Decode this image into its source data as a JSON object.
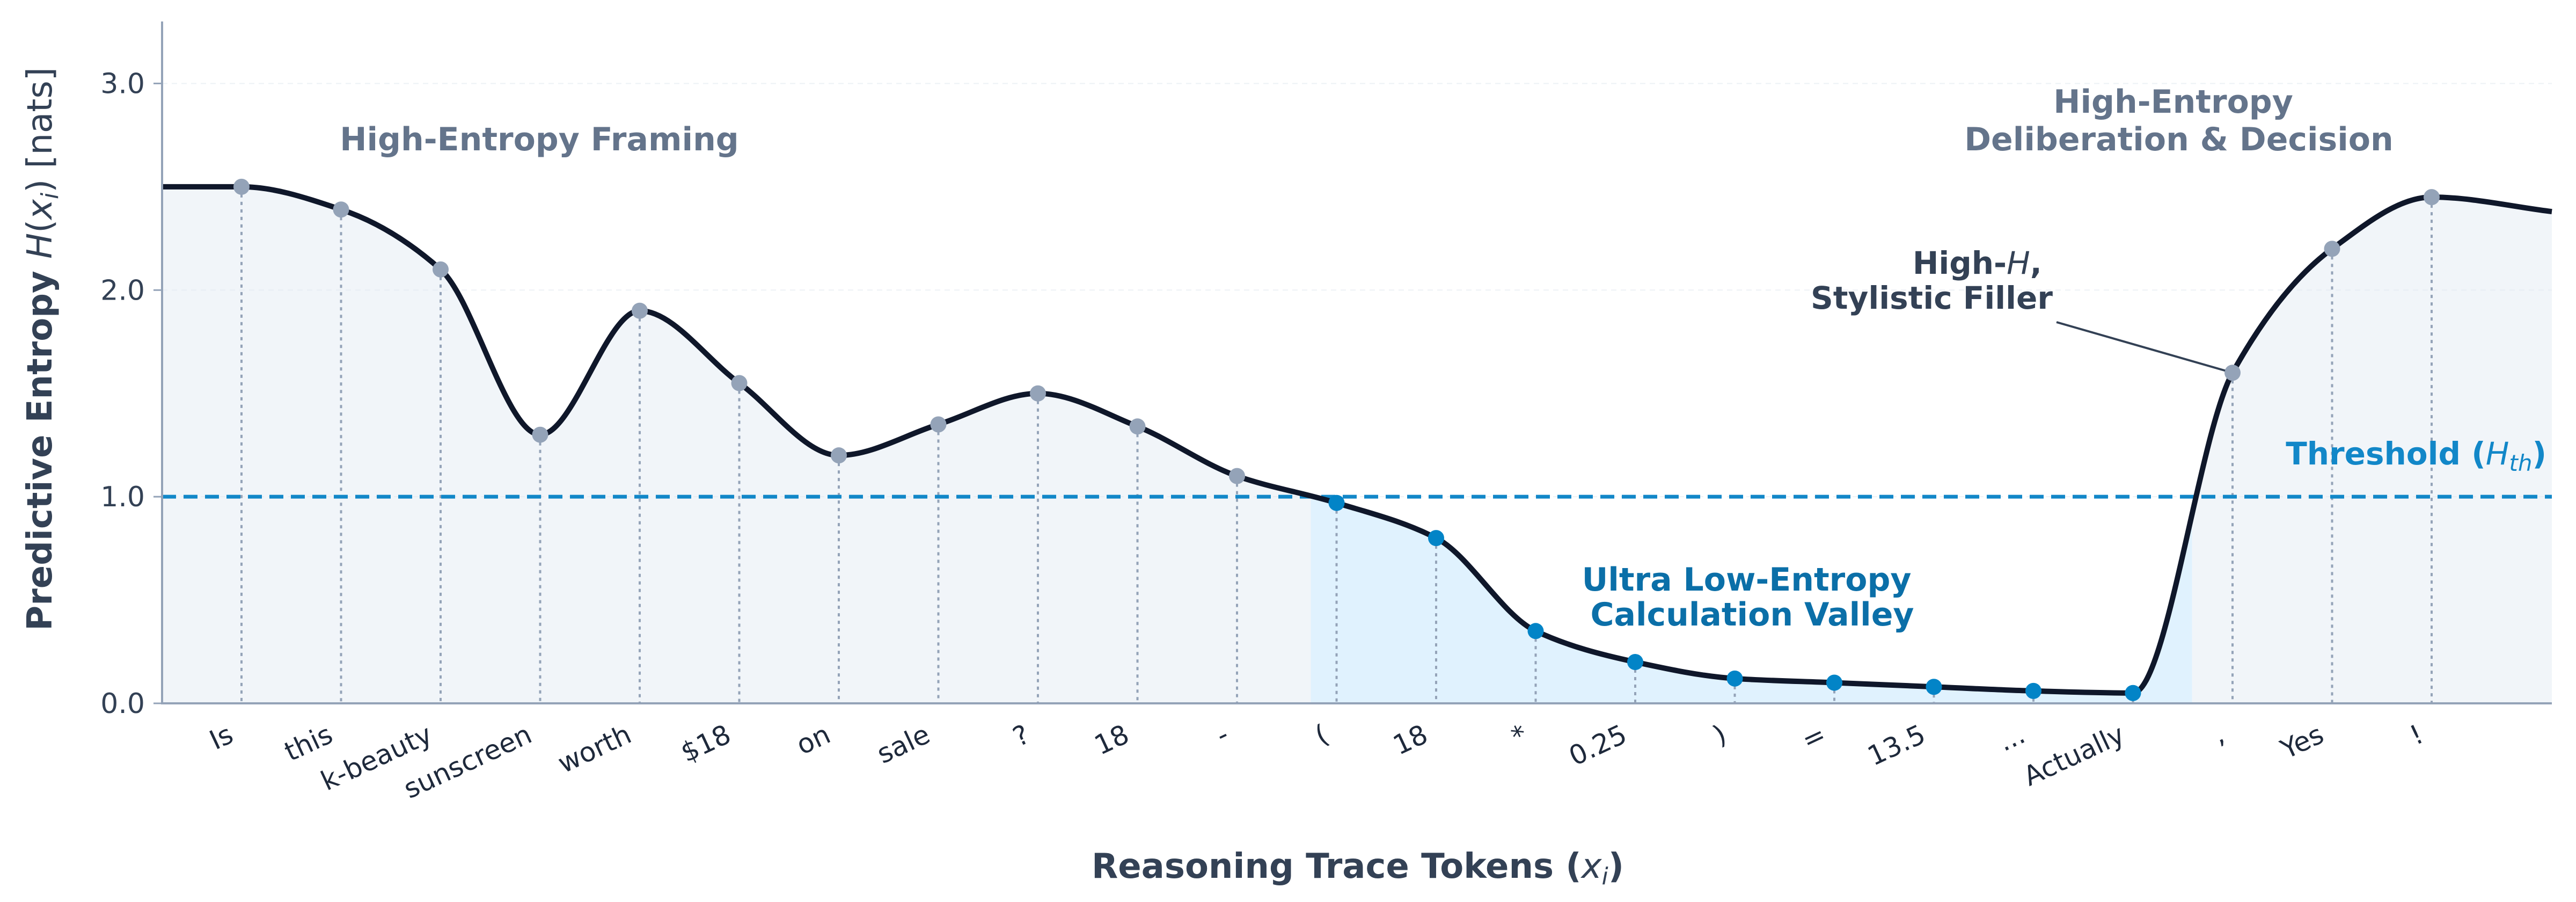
{
  "chart_data": {
    "type": "line",
    "xlabel_main": "Reasoning Trace Tokens (",
    "xlabel_var": "x",
    "xlabel_sub": "i",
    "xlabel_close": ")",
    "ylabel_main": "Predictive Entropy ",
    "ylabel_var": "H",
    "ylabel_open": "(",
    "ylabel_sub": "i",
    "ylabel_close": ") [nats]",
    "ylim": [
      0,
      3.3
    ],
    "yticks": [
      "0.0",
      "1.0",
      "2.0",
      "3.0"
    ],
    "ytick_values": [
      0,
      1,
      2,
      3
    ],
    "grid": "horizontal",
    "tokens": [
      "Is",
      "this",
      "k-beauty",
      "sunscreen",
      "worth",
      "$18",
      "on",
      "sale",
      "?",
      "18",
      "-",
      "(",
      "18",
      "*",
      "0.25",
      ")",
      "=",
      "13.5",
      "...",
      "Actually",
      ",",
      "Yes",
      "!"
    ],
    "values": [
      2.5,
      2.39,
      2.1,
      1.3,
      1.9,
      1.55,
      1.2,
      1.35,
      1.5,
      1.34,
      1.1,
      0.97,
      0.8,
      0.35,
      0.2,
      0.12,
      0.1,
      0.08,
      0.06,
      0.05,
      1.6,
      2.2,
      2.45
    ],
    "low_entropy_indices": [
      11,
      12,
      13,
      14,
      15,
      16,
      17,
      18,
      19
    ],
    "threshold": 1.0,
    "threshold_label_main": "Threshold (",
    "threshold_label_var": "H",
    "threshold_label_sub": "th",
    "threshold_label_close": ")",
    "annotations": {
      "framing": "High-Entropy Framing",
      "deliberation_line1": "High-Entropy",
      "deliberation_line2": "Deliberation & Decision",
      "valley_line1": "Ultra Low-Entropy",
      "valley_line2": "Calculation Valley",
      "filler_line1_main": "High-",
      "filler_line1_var": "H",
      "filler_line1_tail": ",",
      "filler_line2": "Stylistic Filler"
    },
    "colors": {
      "curve": "#0f172a",
      "high_point": "#94a3b8",
      "low_point": "#0284c7",
      "threshold": "#1287c8",
      "fill_high": "#f1f5f9",
      "fill_valley": "#e0f2fe"
    }
  }
}
